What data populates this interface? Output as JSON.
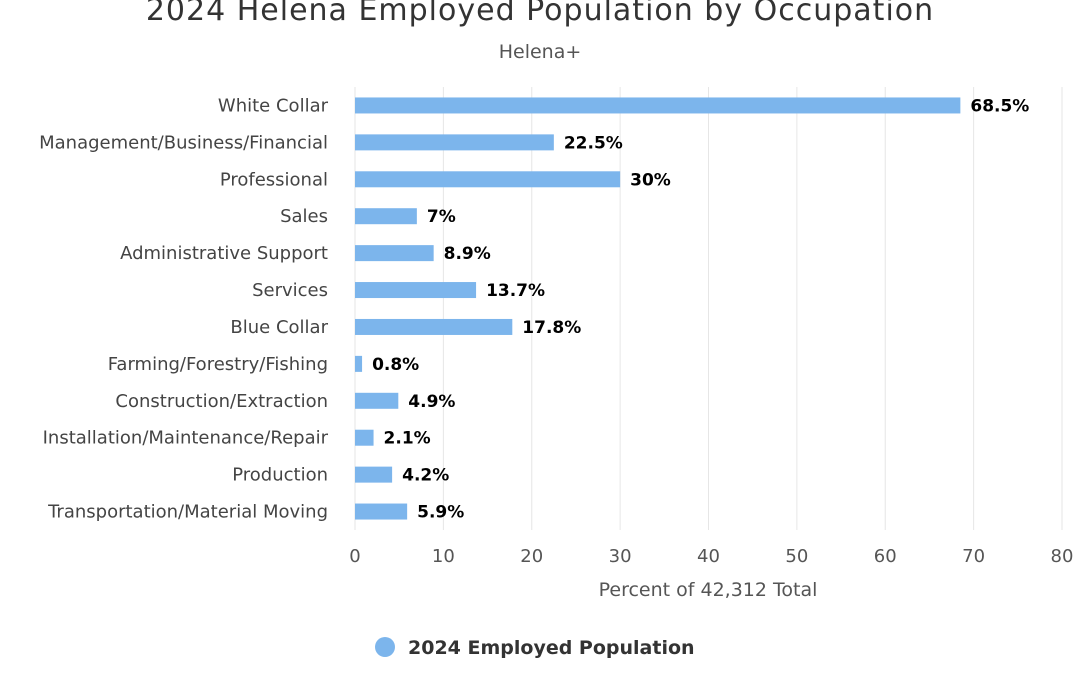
{
  "colors": {
    "series": "#7cb5ec",
    "grid": "#e6e6e6"
  },
  "chart_data": {
    "type": "bar",
    "orientation": "horizontal",
    "title": "2024 Helena Employed Population by Occupation",
    "subtitle": "Helena+",
    "xlabel": "Percent of 42,312 Total",
    "ylabel": "",
    "xlim": [
      0,
      80
    ],
    "ticks": [
      0,
      10,
      20,
      30,
      40,
      50,
      60,
      70,
      80
    ],
    "grid": true,
    "legend_position": "bottom-center",
    "categories": [
      "White Collar",
      "Management/Business/Financial",
      "Professional",
      "Sales",
      "Administrative Support",
      "Services",
      "Blue Collar",
      "Farming/Forestry/Fishing",
      "Construction/Extraction",
      "Installation/Maintenance/Repair",
      "Production",
      "Transportation/Material Moving"
    ],
    "series": [
      {
        "name": "2024 Employed Population",
        "values": [
          68.5,
          22.5,
          30,
          7,
          8.9,
          13.7,
          17.8,
          0.8,
          4.9,
          2.1,
          4.2,
          5.9
        ],
        "labels": [
          "68.5%",
          "22.5%",
          "30%",
          "7%",
          "8.9%",
          "13.7%",
          "17.8%",
          "0.8%",
          "4.9%",
          "2.1%",
          "4.2%",
          "5.9%"
        ]
      }
    ]
  }
}
